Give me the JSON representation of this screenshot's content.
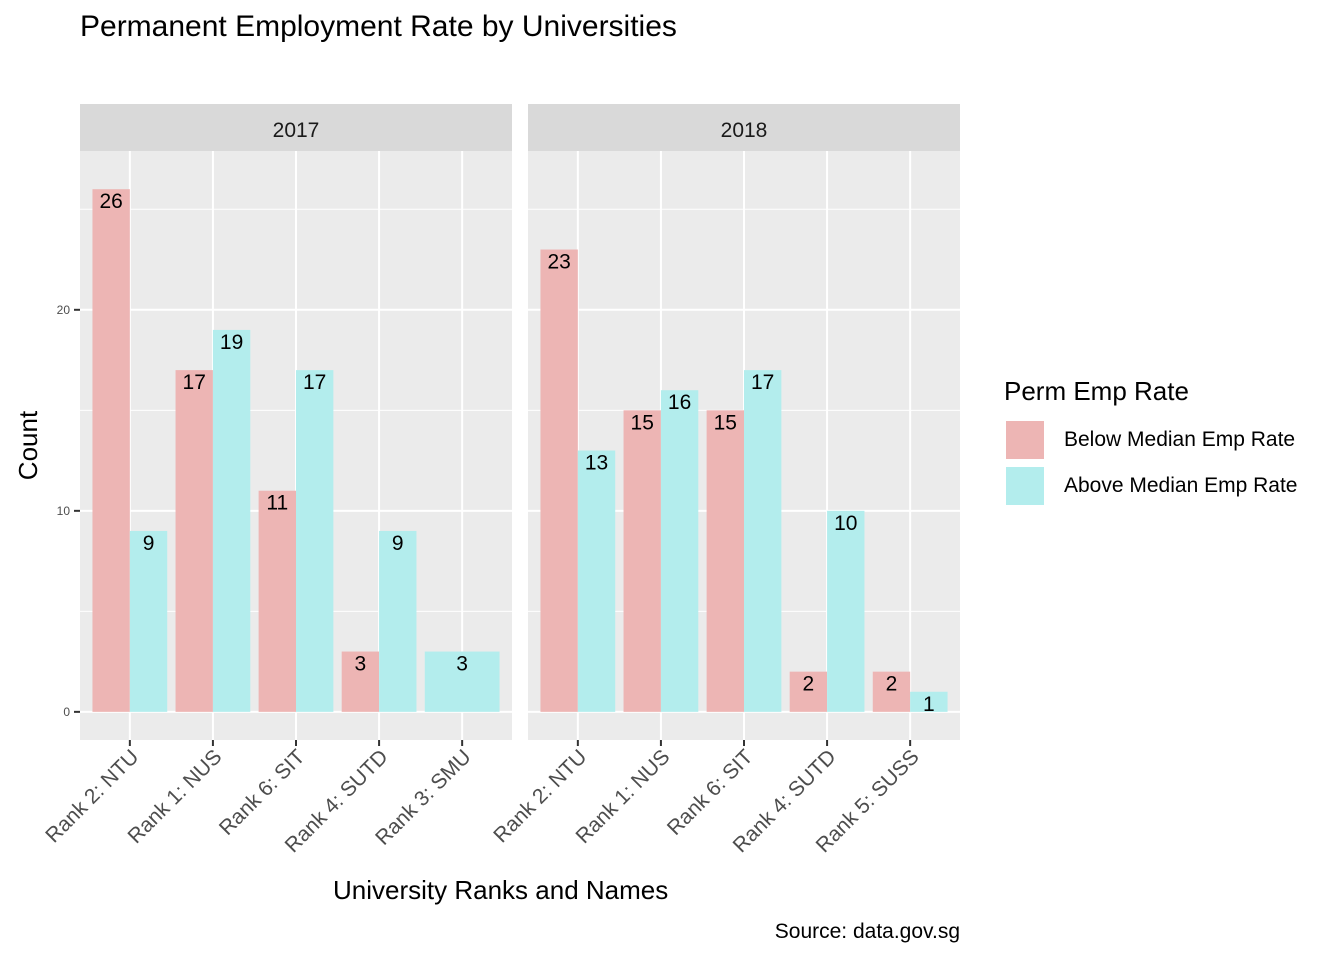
{
  "chart_data": {
    "type": "bar",
    "title": "Permanent Employment Rate by Universities",
    "xlabel": "University Ranks and Names",
    "ylabel": "Count",
    "caption": "Source: data.gov.sg",
    "ylim": [
      -1.4,
      27.9
    ],
    "yticks": [
      "0",
      "10",
      "20"
    ],
    "grid": true,
    "legend": {
      "title": "Perm Emp Rate",
      "placement": "right",
      "entries": [
        {
          "name": "Below Median Emp Rate",
          "color": "#EDB5B4"
        },
        {
          "name": "Above Median Emp Rate",
          "color": "#B3EDED"
        }
      ]
    },
    "panels": [
      {
        "facet": "2017",
        "categories": [
          "Rank 2: NTU",
          "Rank 1: NUS",
          "Rank 6: SIT",
          "Rank 4: SUTD",
          "Rank 3: SMU"
        ],
        "series": [
          {
            "name": "Below Median Emp Rate",
            "values": [
              26,
              17,
              11,
              3,
              null
            ]
          },
          {
            "name": "Above Median Emp Rate",
            "values": [
              9,
              19,
              17,
              9,
              3
            ]
          }
        ]
      },
      {
        "facet": "2018",
        "categories": [
          "Rank 2: NTU",
          "Rank 1: NUS",
          "Rank 6: SIT",
          "Rank 4: SUTD",
          "Rank 5: SUSS"
        ],
        "series": [
          {
            "name": "Below Median Emp Rate",
            "values": [
              23,
              15,
              15,
              2,
              2
            ]
          },
          {
            "name": "Above Median Emp Rate",
            "values": [
              13,
              16,
              17,
              10,
              1
            ]
          }
        ]
      }
    ]
  }
}
